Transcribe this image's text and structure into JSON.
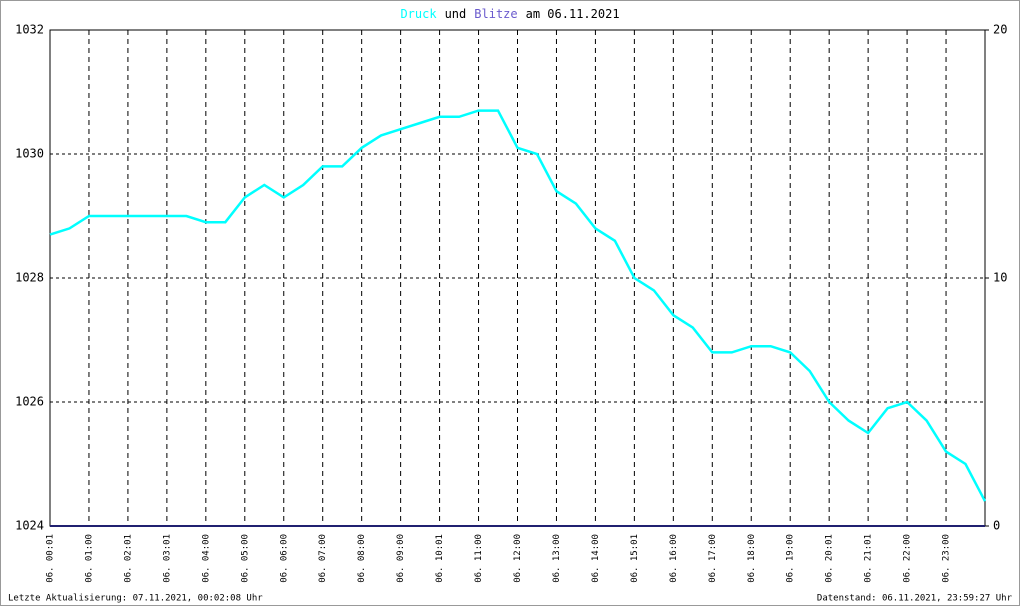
{
  "chart_data": {
    "type": "line",
    "title_connector": "und",
    "title_suffix": "am 06.11.2021",
    "xlim": [
      0,
      24
    ],
    "xticks": [
      {
        "value": 0,
        "label": "06. 00:01"
      },
      {
        "value": 1,
        "label": "06. 01:00"
      },
      {
        "value": 2,
        "label": "06. 02:01"
      },
      {
        "value": 3,
        "label": "06. 03:01"
      },
      {
        "value": 4,
        "label": "06. 04:00"
      },
      {
        "value": 5,
        "label": "06. 05:00"
      },
      {
        "value": 6,
        "label": "06. 06:00"
      },
      {
        "value": 7,
        "label": "06. 07:00"
      },
      {
        "value": 8,
        "label": "06. 08:00"
      },
      {
        "value": 9,
        "label": "06. 09:00"
      },
      {
        "value": 10,
        "label": "06. 10:01"
      },
      {
        "value": 11,
        "label": "06. 11:00"
      },
      {
        "value": 12,
        "label": "06. 12:00"
      },
      {
        "value": 13,
        "label": "06. 13:00"
      },
      {
        "value": 14,
        "label": "06. 14:00"
      },
      {
        "value": 15,
        "label": "06. 15:01"
      },
      {
        "value": 16,
        "label": "06. 16:00"
      },
      {
        "value": 17,
        "label": "06. 17:00"
      },
      {
        "value": 18,
        "label": "06. 18:00"
      },
      {
        "value": 19,
        "label": "06. 19:00"
      },
      {
        "value": 20,
        "label": "06. 20:01"
      },
      {
        "value": 21,
        "label": "06. 21:01"
      },
      {
        "value": 22,
        "label": "06. 22:00"
      },
      {
        "value": 23,
        "label": "06. 23:00"
      }
    ],
    "ylim": [
      1024,
      1032
    ],
    "yticks": [
      1024,
      1026,
      1028,
      1030,
      1032
    ],
    "y2lim": [
      0,
      20
    ],
    "y2ticks": [
      0,
      10,
      20
    ],
    "grid": true,
    "series": [
      {
        "name": "Druck",
        "color": "#00ffff",
        "x": [
          0,
          0.5,
          1,
          1.5,
          2,
          2.5,
          3,
          3.5,
          4,
          4.5,
          5,
          5.5,
          6,
          6.5,
          7,
          7.5,
          8,
          8.5,
          9,
          9.5,
          10,
          10.5,
          11,
          11.5,
          12,
          12.5,
          13,
          13.5,
          14,
          14.5,
          15,
          15.5,
          16,
          16.5,
          17,
          17.5,
          18,
          18.5,
          19,
          19.5,
          20,
          20.5,
          21,
          21.5,
          22,
          22.5,
          23,
          23.5,
          24
        ],
        "values": [
          1028.7,
          1028.8,
          1029.0,
          1029.0,
          1029.0,
          1029.0,
          1029.0,
          1029.0,
          1028.9,
          1028.9,
          1029.3,
          1029.5,
          1029.3,
          1029.5,
          1029.8,
          1029.8,
          1030.1,
          1030.3,
          1030.4,
          1030.5,
          1030.6,
          1030.6,
          1030.7,
          1030.7,
          1030.1,
          1030.0,
          1029.4,
          1029.2,
          1028.8,
          1028.6,
          1028.0,
          1027.8,
          1027.4,
          1027.2,
          1026.8,
          1026.8,
          1026.9,
          1026.9,
          1026.8,
          1026.5,
          1026.0,
          1025.7,
          1025.5,
          1025.9,
          1026.0,
          1025.7,
          1025.2,
          1025.0,
          1024.4
        ]
      },
      {
        "name": "Blitze",
        "color": "#6a5acd",
        "line_color": "#202070",
        "axis": "y2",
        "x": [
          0,
          24
        ],
        "values": [
          0,
          0
        ]
      }
    ],
    "footer_left": "Letzte Aktualisierung: 07.11.2021, 00:02:08 Uhr",
    "footer_right": "Datenstand: 06.11.2021, 23:59:27 Uhr"
  }
}
